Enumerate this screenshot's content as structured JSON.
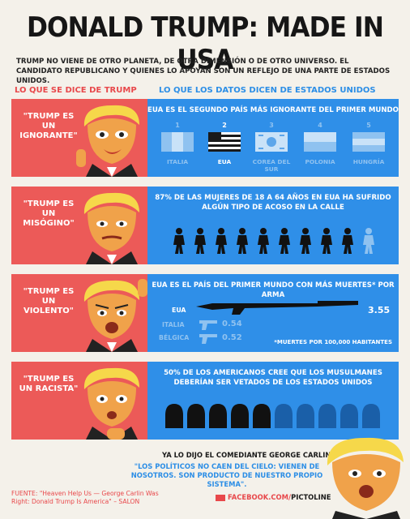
{
  "header": {
    "title": "DONALD TRUMP: MADE IN USA",
    "subtitle": "TRUMP NO VIENE DE OTRO PLANETA, DE OTRA DIMENSIÓN O DE OTRO UNIVERSO. EL CANDIDATO REPUBLICANO Y QUIENES LO APOYAN SON UN REFLEJO DE UNA PARTE DE ESTADOS UNIDOS."
  },
  "columns": {
    "left": "LO QUE SE DICE DE TRUMP",
    "right": "LO QUE LOS DATOS DICEN DE ESTADOS UNIDOS"
  },
  "rows": [
    {
      "quote": "\"TRUMP ES UN IGNORANTE\"",
      "fact": "EUA ES EL SEGUNDO PAÍS MÁS IGNORANTE DEL PRIMER MUNDO",
      "ranking": [
        {
          "rank": "1",
          "country": "ITALIA"
        },
        {
          "rank": "2",
          "country": "EUA"
        },
        {
          "rank": "3",
          "country": "COREA DEL SUR"
        },
        {
          "rank": "4",
          "country": "POLONIA"
        },
        {
          "rank": "5",
          "country": "HUNGRÍA"
        }
      ]
    },
    {
      "quote": "\"TRUMP ES UN MISÓGINO\"",
      "fact": "87% DE LAS MUJERES DE 18 A 64 AÑOS EN EUA HA SUFRIDO ALGÚN TIPO DE ACOSO EN LA CALLE",
      "share_harassed": 0.87
    },
    {
      "quote": "\"TRUMP ES UN VIOLENTO\"",
      "fact": "EUA ES EL PAÍS DEL PRIMER MUNDO CON MÁS MUERTES* POR ARMA",
      "stats": [
        {
          "country": "EUA",
          "value": "3.55"
        },
        {
          "country": "ITALIA",
          "value": "0.54"
        },
        {
          "country": "BÉLGICA",
          "value": "0.52"
        }
      ],
      "note": "*MUERTES POR 100,000 HABITANTES"
    },
    {
      "quote": "\"TRUMP ES UN RACISTA\"",
      "fact": "50% DE LOS AMERICANOS CREE QUE LOS MUSULMANES DEBERÍAN SER VETADOS DE LOS ESTADOS UNIDOS",
      "share_agree": 0.5
    }
  ],
  "footer": {
    "intro": "YA LO DIJO EL COMEDIANTE",
    "speaker": "GEORGE CARLIN:",
    "quote": "\"LOS POLÍTICOS NO CAEN DEL CIELO: VIENEN DE NOSOTROS. SON PRODUCTO DE NUESTRO PROPIO SISTEMA\".",
    "source": "FUENTE: \"Heaven Help Us — George Carlin Was Right: Donald Trump Is America\" – SALON",
    "facebook_prefix": "FACEBOOK.COM/",
    "facebook_brand": "PICTOLINE"
  },
  "colors": {
    "red": "#ec5a58",
    "blue": "#2f8fe8",
    "dark": "#161616",
    "faded": "#8fc2f0"
  }
}
